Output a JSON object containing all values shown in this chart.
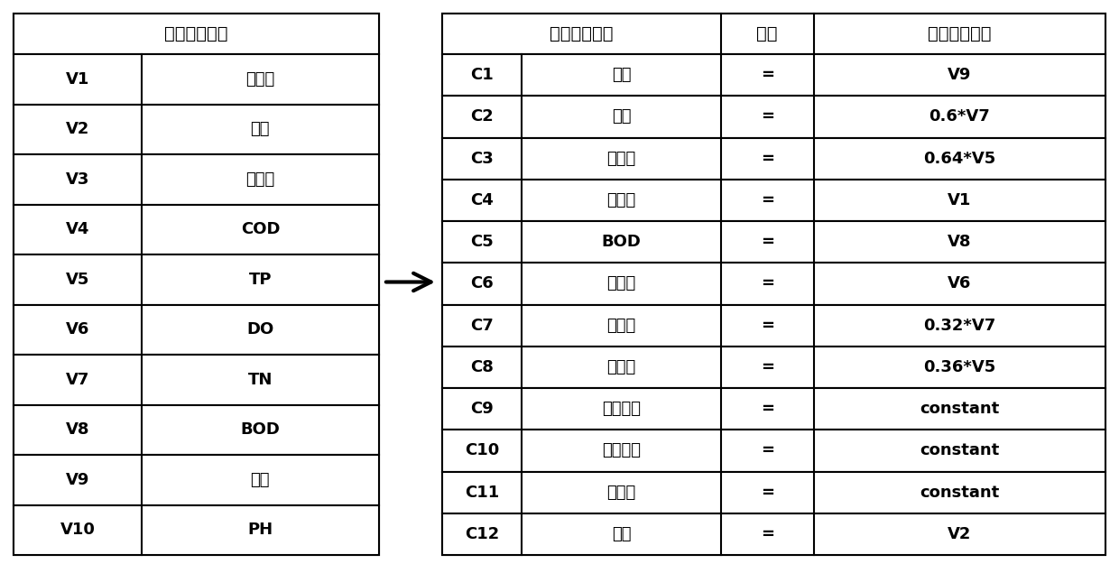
{
  "left_header": "反演模型参数",
  "left_rows": [
    [
      "V1",
      "叶绿素"
    ],
    [
      "V2",
      "水温"
    ],
    [
      "V3",
      "透明度"
    ],
    [
      "V4",
      "COD"
    ],
    [
      "V5",
      "TP"
    ],
    [
      "V6",
      "DO"
    ],
    [
      "V7",
      "TN"
    ],
    [
      "V8",
      "BOD"
    ],
    [
      "V9",
      "氨氮"
    ],
    [
      "V10",
      "PH"
    ]
  ],
  "right_headers": [
    "预测模型参数",
    "关系",
    "反演模型参数"
  ],
  "right_rows": [
    [
      "C1",
      "氨氮",
      "=",
      "V9"
    ],
    [
      "C2",
      "硝氮",
      "=",
      "0.6*V7"
    ],
    [
      "C3",
      "无机磷",
      "=",
      "0.64*V5"
    ],
    [
      "C4",
      "叶绿素",
      "=",
      "V1"
    ],
    [
      "C5",
      "BOD",
      "=",
      "V8"
    ],
    [
      "C6",
      "溶解氧",
      "=",
      "V6"
    ],
    [
      "C7",
      "有机氮",
      "=",
      "0.32*V7"
    ],
    [
      "C8",
      "有机磷",
      "=",
      "0.36*V5"
    ],
    [
      "C9",
      "浮游动物",
      "=",
      "constant"
    ],
    [
      "C10",
      "食肉鱼类",
      "=",
      "constant"
    ],
    [
      "C11",
      "河蚌类",
      "=",
      "constant"
    ],
    [
      "C12",
      "水温",
      "=",
      "V2"
    ]
  ],
  "bg_color": "#ffffff",
  "border_color": "#000000",
  "header_bg": "#ffffff",
  "text_color": "#000000",
  "font_size": 13,
  "header_font_size": 14
}
